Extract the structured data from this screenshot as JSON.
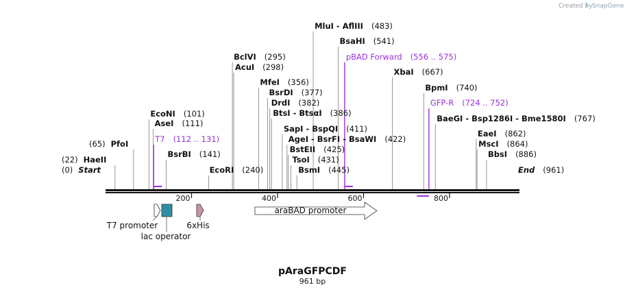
{
  "credit": {
    "prefix": "Created by",
    "brand": "SnapGene"
  },
  "map": {
    "title": "pAraGFPCDF",
    "length_label": "961 bp",
    "length_bp": 961,
    "axis_ticks": [
      "200",
      "400",
      "600",
      "800"
    ],
    "axis_tick_values": [
      200,
      400,
      600,
      800
    ],
    "primer_color": "#9b30d9",
    "sites": [
      {
        "text": "Start",
        "pos_label": "(0)",
        "bp": 0,
        "kind": "end"
      },
      {
        "text": "HaeII",
        "pos_label": "(22)",
        "bp": 22,
        "kind": "enzyme"
      },
      {
        "text": "PfoI",
        "pos_label": "(65)",
        "bp": 65,
        "kind": "enzyme"
      },
      {
        "text": "EcoNI",
        "pos_label": "(101)",
        "bp": 101,
        "kind": "enzyme"
      },
      {
        "text": "AseI",
        "pos_label": "(111)",
        "bp": 111,
        "kind": "enzyme"
      },
      {
        "text": "T7",
        "pos_label": "(112 .. 131)",
        "bp": 112,
        "kind": "primer"
      },
      {
        "text": "BsrBI",
        "pos_label": "(141)",
        "bp": 141,
        "kind": "enzyme"
      },
      {
        "text": "EcoRI",
        "pos_label": "(240)",
        "bp": 240,
        "kind": "enzyme"
      },
      {
        "text": "BclVI",
        "pos_label": "(295)",
        "bp": 295,
        "kind": "enzyme"
      },
      {
        "text": "AcuI",
        "pos_label": "(298)",
        "bp": 298,
        "kind": "enzyme"
      },
      {
        "text": "MfeI",
        "pos_label": "(356)",
        "bp": 356,
        "kind": "enzyme"
      },
      {
        "text": "BsrDI",
        "pos_label": "(377)",
        "bp": 377,
        "kind": "enzyme"
      },
      {
        "text": "DrdI",
        "pos_label": "(382)",
        "bp": 382,
        "kind": "enzyme"
      },
      {
        "text": "BtsI - BtsαI",
        "pos_label": "(386)",
        "bp": 386,
        "kind": "enzyme"
      },
      {
        "text": "SapI - BspQI",
        "pos_label": "(411)",
        "bp": 411,
        "kind": "enzyme"
      },
      {
        "text": "AgeI - BsrFI - BsaWI",
        "pos_label": "(422)",
        "bp": 422,
        "kind": "enzyme"
      },
      {
        "text": "BstEII",
        "pos_label": "(425)",
        "bp": 425,
        "kind": "enzyme"
      },
      {
        "text": "TsoI",
        "pos_label": "(431)",
        "bp": 431,
        "kind": "enzyme"
      },
      {
        "text": "BsmI",
        "pos_label": "(445)",
        "bp": 445,
        "kind": "enzyme"
      },
      {
        "text": "MluI - AflIII",
        "pos_label": "(483)",
        "bp": 483,
        "kind": "enzyme"
      },
      {
        "text": "BsaHI",
        "pos_label": "(541)",
        "bp": 541,
        "kind": "enzyme"
      },
      {
        "text": "pBAD Forward",
        "pos_label": "(556 .. 575)",
        "bp": 556,
        "kind": "primer"
      },
      {
        "text": "XbaI",
        "pos_label": "(667)",
        "bp": 667,
        "kind": "enzyme"
      },
      {
        "text": "BpmI",
        "pos_label": "(740)",
        "bp": 740,
        "kind": "enzyme"
      },
      {
        "text": "GFP-R",
        "pos_label": "(724 .. 752)",
        "bp": 752,
        "kind": "primer"
      },
      {
        "text": "BaeGI - Bsp1286I - Bme1580I",
        "pos_label": "(767)",
        "bp": 767,
        "kind": "enzyme"
      },
      {
        "text": "EaeI",
        "pos_label": "(862)",
        "bp": 862,
        "kind": "enzyme"
      },
      {
        "text": "MscI",
        "pos_label": "(864)",
        "bp": 864,
        "kind": "enzyme"
      },
      {
        "text": "BbsI",
        "pos_label": "(886)",
        "bp": 886,
        "kind": "enzyme"
      },
      {
        "text": "End",
        "pos_label": "(961)",
        "bp": 961,
        "kind": "end"
      }
    ],
    "primers": [
      {
        "text": "T7",
        "start_bp": 112,
        "end_bp": 131,
        "strand": "forward"
      },
      {
        "text": "pBAD Forward",
        "start_bp": 556,
        "end_bp": 575,
        "strand": "forward"
      },
      {
        "text": "GFP-R",
        "start_bp": 724,
        "end_bp": 752,
        "strand": "reverse"
      }
    ],
    "features": [
      {
        "text": "T7 promoter",
        "start_bp": 112,
        "end_bp": 131,
        "color": "#ffffff",
        "shape": "arrow"
      },
      {
        "text": "lac operator",
        "start_bp": 131,
        "end_bp": 156,
        "color": "#2e8fa3",
        "shape": "box"
      },
      {
        "text": "6xHis",
        "start_bp": 210,
        "end_bp": 228,
        "color": "#c895aa",
        "shape": "arrow"
      },
      {
        "text": "araBAD promoter",
        "start_bp": 346,
        "end_bp": 631,
        "color": "#ffffff",
        "shape": "arrow"
      }
    ]
  }
}
